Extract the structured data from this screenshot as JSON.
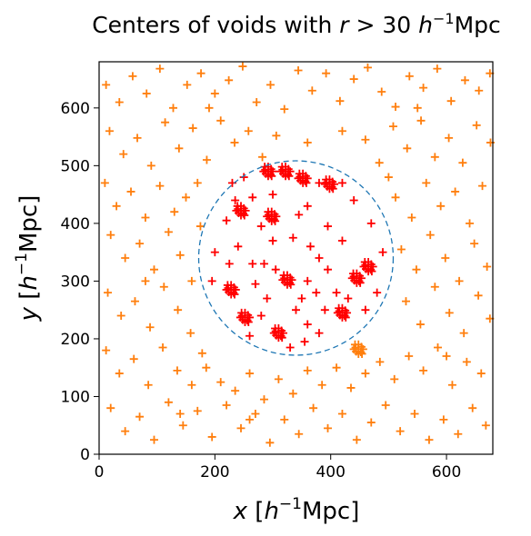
{
  "chart_data": {
    "type": "scatter",
    "title": {
      "prefix": "Centers of voids with ",
      "var": "r",
      "rel": " > 30 ",
      "unit_base": "h",
      "unit_exp": "−1",
      "unit_tail": "Mpc"
    },
    "xlabel": {
      "var": "x",
      "open": " [",
      "unit_base": "h",
      "unit_exp": "−1",
      "unit_tail": "Mpc]"
    },
    "ylabel": {
      "var": "y",
      "open": " [",
      "unit_base": "h",
      "unit_exp": "−1",
      "unit_tail": "Mpc]"
    },
    "xlim": [
      0,
      680
    ],
    "ylim": [
      0,
      680
    ],
    "xticks": [
      0,
      200,
      400,
      600
    ],
    "yticks": [
      0,
      100,
      200,
      300,
      400,
      500,
      600
    ],
    "grid": false,
    "legend": "none",
    "circle": {
      "center": [
        340,
        340
      ],
      "radius": 168,
      "style": "dashed",
      "color": "#1f77b4"
    },
    "inside_color": "#ff0000",
    "outside_color": "#ff7f0e",
    "marker": "plus",
    "cluster_centers": [
      [
        245,
        422
      ],
      [
        325,
        302
      ],
      [
        252,
        237
      ],
      [
        310,
        210
      ],
      [
        228,
        285
      ],
      [
        445,
        305
      ],
      [
        465,
        325
      ],
      [
        420,
        245
      ],
      [
        448,
        182
      ],
      [
        398,
        468
      ],
      [
        322,
        490
      ],
      [
        298,
        412
      ],
      [
        292,
        490
      ],
      [
        352,
        478
      ]
    ],
    "points_outside": [
      [
        12,
        640
      ],
      [
        35,
        610
      ],
      [
        58,
        655
      ],
      [
        82,
        625
      ],
      [
        105,
        668
      ],
      [
        128,
        600
      ],
      [
        152,
        640
      ],
      [
        176,
        660
      ],
      [
        200,
        625
      ],
      [
        224,
        648
      ],
      [
        248,
        672
      ],
      [
        272,
        610
      ],
      [
        296,
        640
      ],
      [
        320,
        598
      ],
      [
        344,
        665
      ],
      [
        368,
        630
      ],
      [
        392,
        660
      ],
      [
        416,
        612
      ],
      [
        440,
        650
      ],
      [
        464,
        670
      ],
      [
        488,
        628
      ],
      [
        512,
        602
      ],
      [
        536,
        655
      ],
      [
        560,
        635
      ],
      [
        584,
        668
      ],
      [
        608,
        612
      ],
      [
        632,
        648
      ],
      [
        656,
        630
      ],
      [
        675,
        660
      ],
      [
        18,
        560
      ],
      [
        42,
        520
      ],
      [
        66,
        548
      ],
      [
        90,
        500
      ],
      [
        114,
        575
      ],
      [
        138,
        530
      ],
      [
        162,
        565
      ],
      [
        186,
        510
      ],
      [
        210,
        578
      ],
      [
        234,
        540
      ],
      [
        258,
        560
      ],
      [
        282,
        515
      ],
      [
        306,
        552
      ],
      [
        460,
        545
      ],
      [
        484,
        505
      ],
      [
        508,
        568
      ],
      [
        532,
        530
      ],
      [
        556,
        578
      ],
      [
        580,
        515
      ],
      [
        604,
        548
      ],
      [
        628,
        505
      ],
      [
        652,
        570
      ],
      [
        676,
        540
      ],
      [
        10,
        470
      ],
      [
        30,
        430
      ],
      [
        55,
        455
      ],
      [
        80,
        410
      ],
      [
        105,
        465
      ],
      [
        130,
        420
      ],
      [
        150,
        445
      ],
      [
        170,
        470
      ],
      [
        175,
        395
      ],
      [
        512,
        445
      ],
      [
        540,
        410
      ],
      [
        565,
        470
      ],
      [
        590,
        430
      ],
      [
        615,
        455
      ],
      [
        640,
        400
      ],
      [
        662,
        465
      ],
      [
        20,
        380
      ],
      [
        45,
        340
      ],
      [
        70,
        365
      ],
      [
        95,
        320
      ],
      [
        120,
        385
      ],
      [
        140,
        345
      ],
      [
        160,
        300
      ],
      [
        522,
        355
      ],
      [
        548,
        320
      ],
      [
        572,
        380
      ],
      [
        598,
        340
      ],
      [
        622,
        300
      ],
      [
        648,
        365
      ],
      [
        670,
        325
      ],
      [
        15,
        280
      ],
      [
        38,
        240
      ],
      [
        62,
        265
      ],
      [
        88,
        220
      ],
      [
        112,
        290
      ],
      [
        136,
        250
      ],
      [
        158,
        210
      ],
      [
        178,
        175
      ],
      [
        530,
        265
      ],
      [
        555,
        225
      ],
      [
        580,
        290
      ],
      [
        605,
        245
      ],
      [
        630,
        210
      ],
      [
        655,
        275
      ],
      [
        675,
        235
      ],
      [
        12,
        180
      ],
      [
        35,
        140
      ],
      [
        60,
        165
      ],
      [
        85,
        120
      ],
      [
        110,
        185
      ],
      [
        135,
        145
      ],
      [
        160,
        120
      ],
      [
        185,
        150
      ],
      [
        210,
        125
      ],
      [
        235,
        110
      ],
      [
        260,
        140
      ],
      [
        285,
        95
      ],
      [
        310,
        130
      ],
      [
        335,
        105
      ],
      [
        360,
        145
      ],
      [
        385,
        120
      ],
      [
        410,
        150
      ],
      [
        435,
        115
      ],
      [
        460,
        140
      ],
      [
        485,
        160
      ],
      [
        510,
        130
      ],
      [
        535,
        170
      ],
      [
        560,
        145
      ],
      [
        585,
        185
      ],
      [
        610,
        120
      ],
      [
        635,
        160
      ],
      [
        660,
        140
      ],
      [
        20,
        80
      ],
      [
        45,
        40
      ],
      [
        70,
        65
      ],
      [
        95,
        25
      ],
      [
        120,
        90
      ],
      [
        145,
        50
      ],
      [
        170,
        75
      ],
      [
        195,
        30
      ],
      [
        220,
        85
      ],
      [
        245,
        45
      ],
      [
        270,
        70
      ],
      [
        295,
        20
      ],
      [
        320,
        60
      ],
      [
        345,
        35
      ],
      [
        370,
        80
      ],
      [
        395,
        45
      ],
      [
        420,
        70
      ],
      [
        445,
        25
      ],
      [
        470,
        55
      ],
      [
        495,
        85
      ],
      [
        520,
        40
      ],
      [
        545,
        70
      ],
      [
        570,
        25
      ],
      [
        595,
        60
      ],
      [
        620,
        35
      ],
      [
        645,
        80
      ],
      [
        668,
        50
      ],
      [
        190,
        600
      ],
      [
        420,
        560
      ],
      [
        360,
        540
      ],
      [
        500,
        480
      ],
      [
        80,
        300
      ],
      [
        600,
        170
      ],
      [
        140,
        70
      ],
      [
        260,
        60
      ],
      [
        550,
        600
      ]
    ],
    "points_inside": [
      [
        265,
        445
      ],
      [
        280,
        395
      ],
      [
        300,
        370
      ],
      [
        335,
        375
      ],
      [
        360,
        300
      ],
      [
        375,
        280
      ],
      [
        290,
        270
      ],
      [
        265,
        330
      ],
      [
        240,
        360
      ],
      [
        220,
        405
      ],
      [
        200,
        350
      ],
      [
        195,
        300
      ],
      [
        380,
        340
      ],
      [
        395,
        395
      ],
      [
        395,
        320
      ],
      [
        410,
        280
      ],
      [
        430,
        270
      ],
      [
        480,
        280
      ],
      [
        490,
        350
      ],
      [
        470,
        400
      ],
      [
        440,
        440
      ],
      [
        420,
        470
      ],
      [
        380,
        470
      ],
      [
        360,
        430
      ],
      [
        250,
        480
      ],
      [
        230,
        470
      ],
      [
        340,
        250
      ],
      [
        360,
        225
      ],
      [
        380,
        210
      ],
      [
        355,
        195
      ],
      [
        330,
        185
      ],
      [
        280,
        240
      ],
      [
        305,
        320
      ],
      [
        350,
        270
      ],
      [
        270,
        295
      ],
      [
        420,
        370
      ],
      [
        300,
        450
      ],
      [
        345,
        415
      ],
      [
        225,
        330
      ],
      [
        260,
        205
      ],
      [
        390,
        250
      ],
      [
        460,
        250
      ],
      [
        235,
        440
      ],
      [
        285,
        330
      ],
      [
        365,
        360
      ]
    ]
  }
}
